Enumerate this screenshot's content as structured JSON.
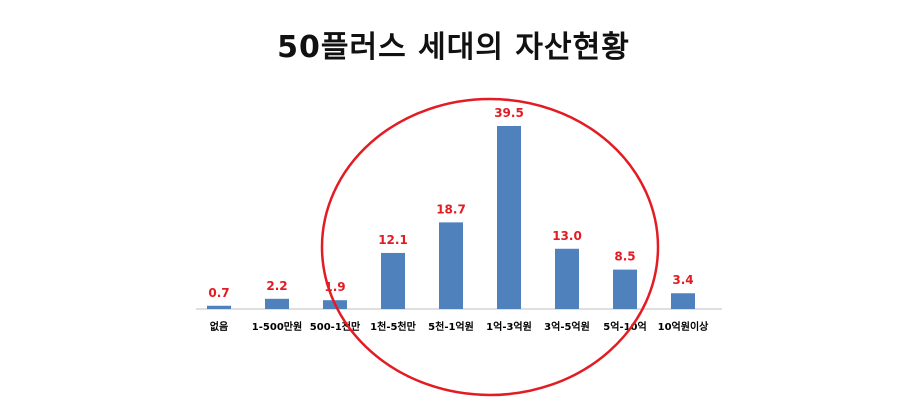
{
  "title": "50플러스 세대의 자산현황",
  "colors": {
    "bar": "#4f81bd",
    "value_label": "#e31b23",
    "circle": "#e31b23",
    "axis": "#bfbfbf",
    "tick_label": "#000000"
  },
  "chart_data": {
    "type": "bar",
    "categories": [
      "없음",
      "1-500만원",
      "500-1천만",
      "1천-5천만",
      "5천-1억원",
      "1억-3억원",
      "3억-5억원",
      "5억-10억",
      "10억원이상"
    ],
    "values": [
      0.7,
      2.2,
      1.9,
      12.1,
      18.7,
      39.5,
      13.0,
      8.5,
      3.4
    ],
    "value_labels": [
      "0.7",
      "2.2",
      "1.9",
      "12.1",
      "18.7",
      "39.5",
      "13.0",
      "8.5",
      "3.4"
    ],
    "title": "50플러스 세대의 자산현황",
    "xlabel": "",
    "ylabel": "",
    "ylim": [
      0,
      40
    ],
    "grid": false,
    "legend": "none",
    "annotation": "red ellipse highlighting 500-1천만 to 5억-10억"
  }
}
